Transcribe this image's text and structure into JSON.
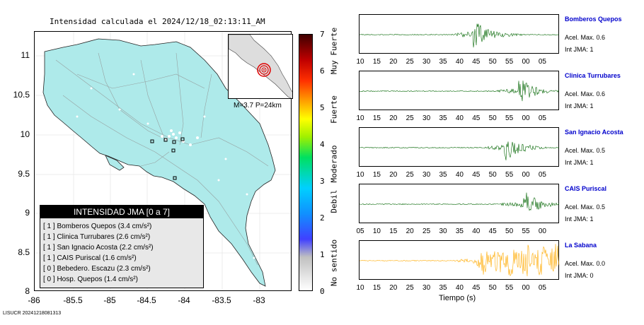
{
  "map": {
    "title": "Intensidad calculada el 2024/12/18_02:13:11_AM",
    "lat_ticks": [
      "11",
      "10.5",
      "10",
      "9.5",
      "9",
      "8.5",
      "8"
    ],
    "lon_ticks": [
      "-86",
      "-85.5",
      "-85",
      "-84.5",
      "-84",
      "-83.5",
      "-83"
    ],
    "eq_info": "M=3.7 P=24km",
    "footer_code": "LISUCR 20241218081313"
  },
  "colorbar": {
    "ticks": [
      "7",
      "6",
      "5",
      "4",
      "3",
      "2",
      "1",
      "0"
    ],
    "labels": [
      "Muy Fuerte",
      "Fuerte",
      "Moderado",
      "Debil",
      "No sentido"
    ]
  },
  "legend": {
    "title": "INTENSIDAD JMA [0 a 7]",
    "rows": [
      "[ 1 ]  Bomberos Quepos (3.4 cm/s²)",
      "[ 1 ]  Clinica Turrubares (2.6 cm/s²)",
      "[ 1 ]  San Ignacio Acosta (2.2 cm/s²)",
      "[ 1 ]  CAIS Puriscal (1.6 cm/s²)",
      "[ 0 ]  Bebedero. Escazu (2.3 cm/s²)",
      "[ 0 ]  Hosp. Quepos (1.4 cm/s²)"
    ]
  },
  "stations": [
    {
      "name": "Bomberos Quepos",
      "acel": "Acel. Max. 0.6",
      "int": "Int JMA: 1",
      "color": "#006400",
      "ticks": [
        "10",
        "15",
        "20",
        "25",
        "30",
        "35",
        "40",
        "45",
        "50",
        "55",
        "00",
        "05"
      ]
    },
    {
      "name": "Clinica Turrubares",
      "acel": "Acel. Max. 0.6",
      "int": "Int JMA: 1",
      "color": "#006400",
      "ticks": [
        "10",
        "15",
        "20",
        "25",
        "30",
        "35",
        "40",
        "45",
        "50",
        "55",
        "00",
        "05"
      ]
    },
    {
      "name": "San Ignacio Acosta",
      "acel": "Acel. Max. 0.5",
      "int": "Int JMA: 1",
      "color": "#006400",
      "ticks": [
        "10",
        "15",
        "20",
        "25",
        "30",
        "35",
        "40",
        "45",
        "50",
        "55",
        "00",
        "05"
      ]
    },
    {
      "name": "CAIS Puriscal",
      "acel": "Acel. Max. 0.5",
      "int": "Int JMA: 1",
      "color": "#006400",
      "ticks": [
        "05",
        "10",
        "15",
        "20",
        "25",
        "30",
        "35",
        "40",
        "45",
        "50",
        "55",
        "00"
      ]
    },
    {
      "name": "La Sabana",
      "acel": "Acel. Max. 0.0",
      "int": "Int JMA: 0",
      "color": "#ffaa00",
      "ticks": [
        "10",
        "15",
        "20",
        "25",
        "30",
        "35",
        "40",
        "45",
        "50",
        "55",
        "00",
        "05"
      ]
    }
  ],
  "time_axis_label": "Tiempo (s)"
}
